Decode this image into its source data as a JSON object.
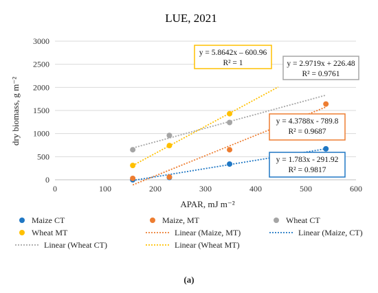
{
  "chart_data": {
    "type": "scatter",
    "title": "LUE, 2021",
    "xlabel": "APAR, mJ m⁻²",
    "ylabel": "dry biomass, g m⁻²",
    "xlim": [
      0,
      600
    ],
    "ylim": [
      0,
      3000
    ],
    "x_ticks": [
      "0",
      "100",
      "200",
      "300",
      "400",
      "500",
      "600"
    ],
    "y_ticks": [
      "0",
      "500",
      "1000",
      "1500",
      "2000",
      "2500",
      "3000"
    ],
    "grid": true,
    "legend": "bottom",
    "series": [
      {
        "name": "Maize CT",
        "color": "#1f77c4",
        "x": [
          155,
          228,
          348,
          540
        ],
        "y": [
          0,
          50,
          340,
          670
        ]
      },
      {
        "name": "Maize, MT",
        "color": "#ed7d31",
        "x": [
          155,
          228,
          348,
          540
        ],
        "y": [
          30,
          60,
          650,
          1640
        ]
      },
      {
        "name": "Wheat CT",
        "color": "#a5a5a5",
        "x": [
          155,
          228,
          348
        ],
        "y": [
          650,
          960,
          1240
        ]
      },
      {
        "name": "Wheat MT",
        "color": "#ffc000",
        "x": [
          155,
          228,
          348
        ],
        "y": [
          310,
          740,
          1430
        ]
      }
    ],
    "trendlines": [
      {
        "name": "Linear (Maize, MT)",
        "color": "#ed7d31",
        "slope": 4.3788,
        "intercept": -789.8,
        "x_range": [
          155,
          540
        ]
      },
      {
        "name": "Linear (Maize, CT)",
        "color": "#1f77c4",
        "slope": 1.783,
        "intercept": -291.92,
        "x_range": [
          155,
          540
        ]
      },
      {
        "name": "Linear (Wheat CT)",
        "color": "#a5a5a5",
        "slope": 2.9719,
        "intercept": 226.48,
        "x_range": [
          155,
          540
        ]
      },
      {
        "name": "Linear (Wheat MT)",
        "color": "#ffc000",
        "slope": 5.8642,
        "intercept": -600.96,
        "x_range": [
          155,
          445
        ]
      }
    ],
    "annotations": [
      {
        "eq": "y = 5.8642x – 600.96",
        "r2": "R² = 1",
        "color": "#ffc000"
      },
      {
        "eq": "y = 2.9719x + 226.48",
        "r2": "R² = 0.9761",
        "color": "#a5a5a5"
      },
      {
        "eq": "y = 4.3788x - 789.8",
        "r2": "R² = 0.9687",
        "color": "#ed7d31"
      },
      {
        "eq": "y = 1.783x - 291.92",
        "r2": "R² = 0.9817",
        "color": "#1f77c4"
      }
    ],
    "legend_order": [
      "Maize CT",
      "Maize, MT",
      "Wheat CT",
      "Wheat MT",
      "Linear (Maize, MT)",
      "Linear (Maize, CT)",
      "Linear (Wheat CT)",
      "Linear (Wheat MT)"
    ]
  },
  "caption": "(a)"
}
